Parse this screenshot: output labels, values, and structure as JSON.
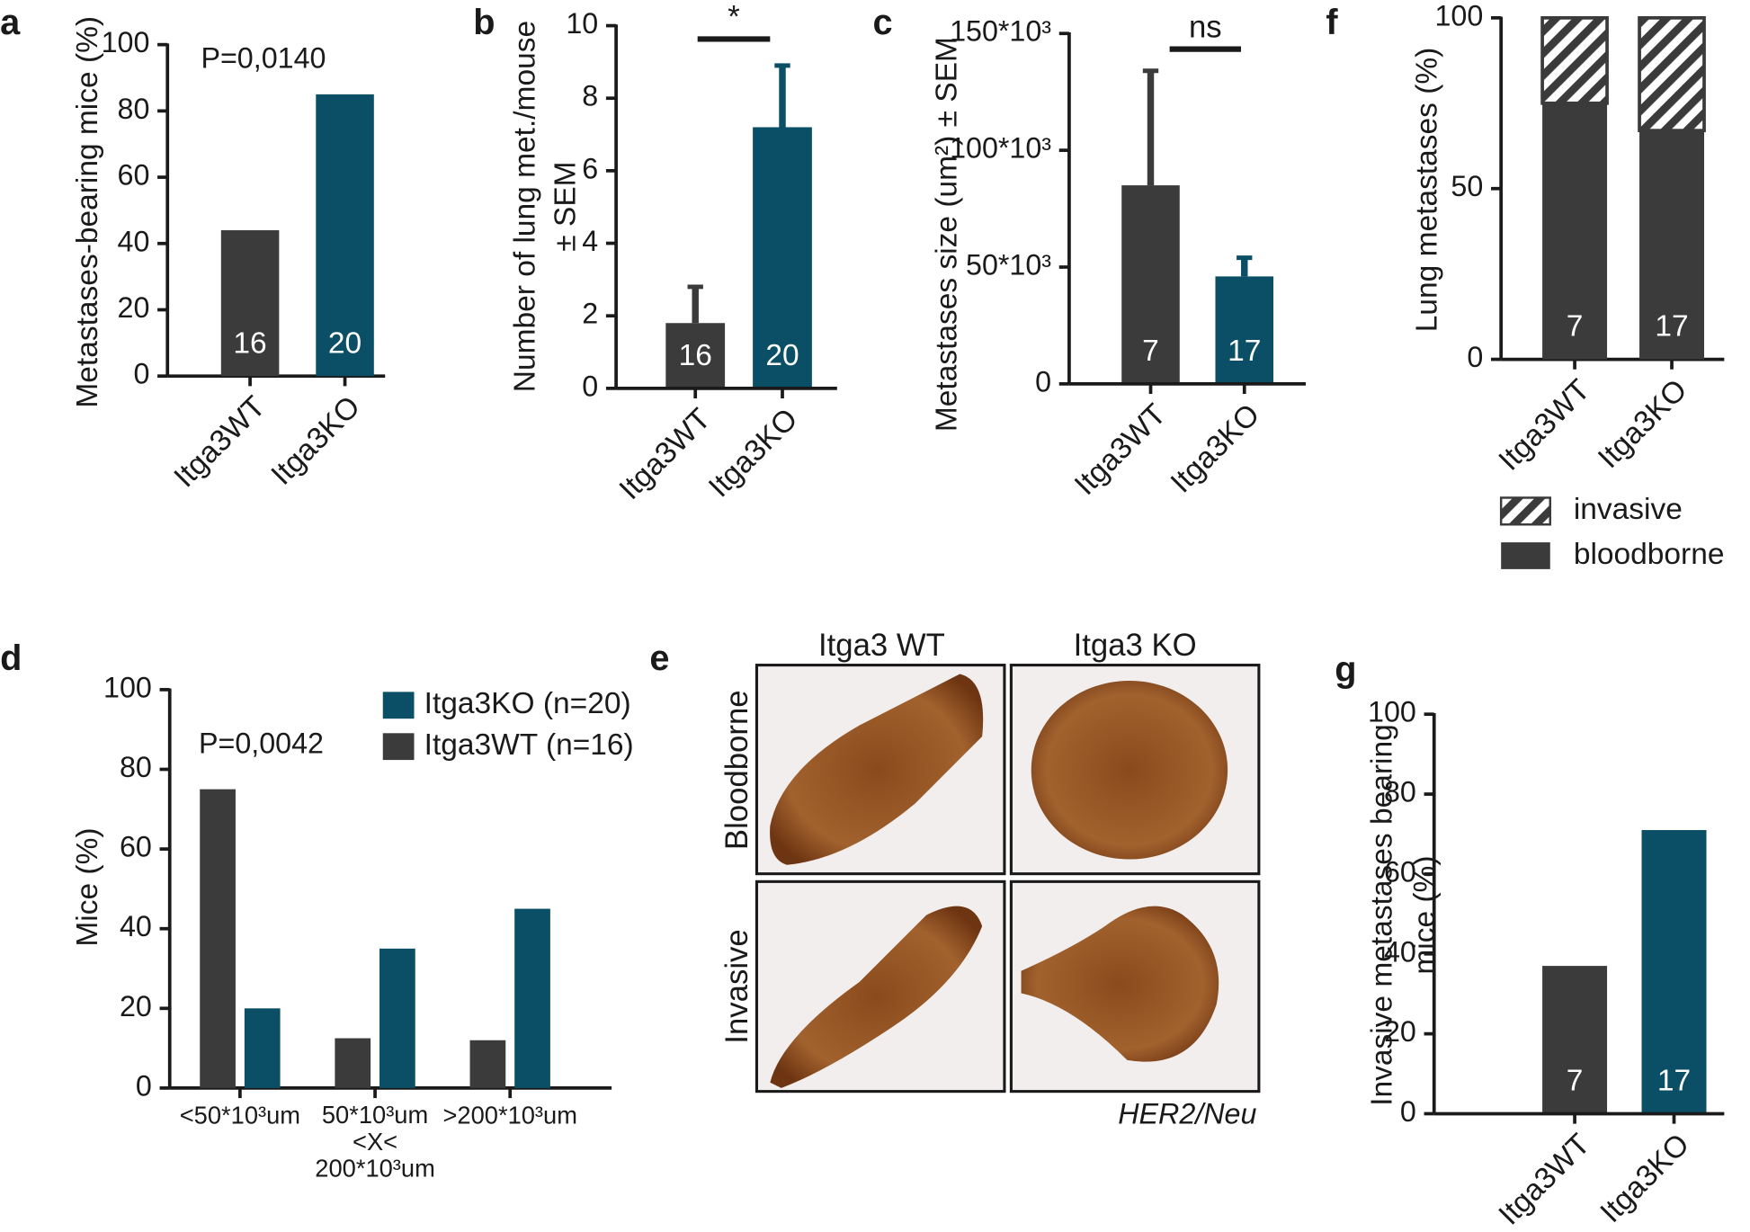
{
  "chart_data": [
    {
      "panel": "a",
      "type": "bar",
      "categories": [
        "Itga3WT",
        "Itga3KO"
      ],
      "values": [
        44,
        85
      ],
      "colors": [
        "#3b3b3b",
        "#0b4f66"
      ],
      "sample_sizes": [
        16,
        20
      ],
      "ylabel": [
        "Metastases-bearing mice (%)"
      ],
      "ylim": [
        0,
        100
      ],
      "yticks": [
        0,
        20,
        40,
        60,
        80,
        100
      ],
      "annotation": "P=0,0140"
    },
    {
      "panel": "b",
      "type": "bar",
      "categories": [
        "Itga3WT",
        "Itga3KO"
      ],
      "values": [
        1.8,
        7.2
      ],
      "errors": [
        1.0,
        1.7
      ],
      "colors": [
        "#3b3b3b",
        "#0b4f66"
      ],
      "sample_sizes": [
        16,
        20
      ],
      "ylabel": [
        "Number of lung met./mouse",
        "± SEM"
      ],
      "ylim": [
        0,
        10
      ],
      "yticks": [
        0,
        2,
        4,
        6,
        8,
        10
      ],
      "significance": "*"
    },
    {
      "panel": "c",
      "type": "bar",
      "categories": [
        "Itga3WT",
        "Itga3KO"
      ],
      "values": [
        85000,
        46000
      ],
      "errors": [
        49000,
        8000
      ],
      "colors": [
        "#3b3b3b",
        "#0b4f66"
      ],
      "sample_sizes": [
        7,
        17
      ],
      "ylabel": [
        "Metastases size (um²)  ± SEM"
      ],
      "ylim": [
        0,
        150000
      ],
      "yticks": [
        0,
        {
          "value": 50000,
          "label": "50*10³"
        },
        {
          "value": 100000,
          "label": "100*10³"
        },
        {
          "value": 150000,
          "label": "150*10³"
        }
      ],
      "significance": "ns"
    },
    {
      "panel": "f",
      "type": "stacked_bar",
      "categories": [
        "Itga3WT",
        "Itga3KO"
      ],
      "series": [
        {
          "name": "bloodborne",
          "color": "#3b3b3b",
          "values": [
            75,
            67
          ]
        },
        {
          "name": "invasive",
          "color": "#3b3b3b",
          "hatch": true,
          "values": [
            25,
            33
          ]
        }
      ],
      "sample_sizes": [
        7,
        17
      ],
      "ylabel": [
        "Lung metastases (%)"
      ],
      "ylim": [
        0,
        100
      ],
      "yticks": [
        0,
        50,
        100
      ]
    },
    {
      "panel": "d",
      "type": "grouped_bar",
      "categories": [
        "<50*10³um",
        "50*10³um\n<X<\n200*10³um",
        ">200*10³um"
      ],
      "series": [
        {
          "name": "Itga3KO (n=20)",
          "color": "#0b4f66",
          "values": [
            20,
            35,
            45
          ]
        },
        {
          "name": "Itga3WT (n=16)",
          "color": "#3b3b3b",
          "values": [
            75,
            12.5,
            12
          ]
        }
      ],
      "ylabel": [
        "Mice (%)"
      ],
      "ylim": [
        0,
        100
      ],
      "yticks": [
        0,
        20,
        40,
        60,
        80,
        100
      ],
      "annotation": "P=0,0042"
    },
    {
      "panel": "g",
      "type": "bar",
      "categories": [
        "Itga3WT",
        "Itga3KO"
      ],
      "values": [
        37,
        71
      ],
      "colors": [
        "#3b3b3b",
        "#0b4f66"
      ],
      "sample_sizes": [
        7,
        17
      ],
      "ylabel": [
        "Invasive metastases bearing",
        "mice (%)"
      ],
      "ylim": [
        0,
        100
      ],
      "yticks": [
        0,
        20,
        40,
        60,
        80,
        100
      ]
    }
  ],
  "panel_e": {
    "panel": "e",
    "columns": [
      "Itga3 WT",
      "Itga3 KO"
    ],
    "rows": [
      "Bloodborne",
      "Invasive"
    ],
    "stain": "HER2/Neu"
  }
}
